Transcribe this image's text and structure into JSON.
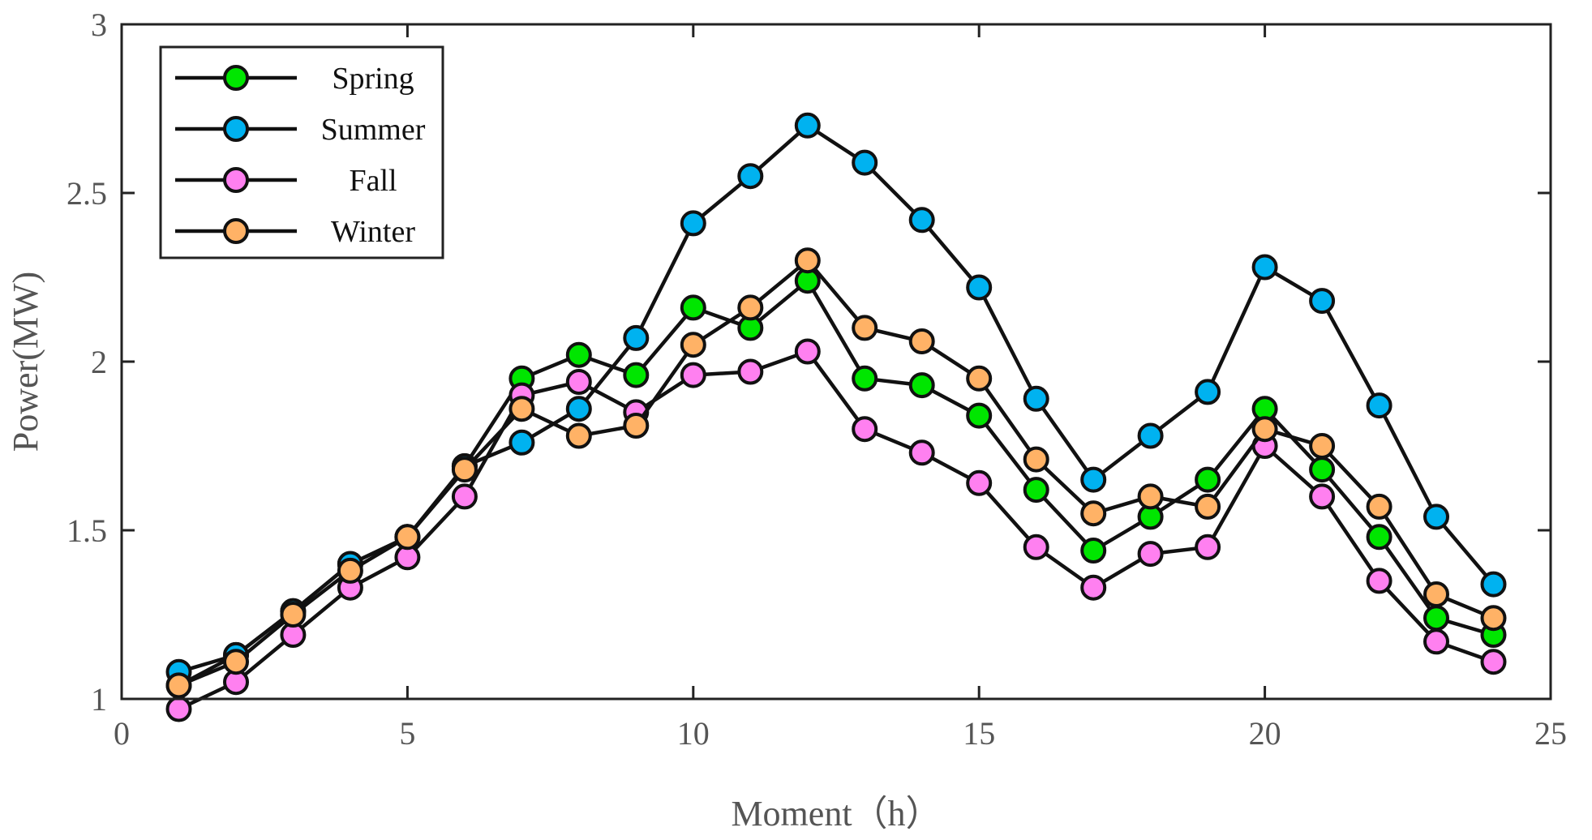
{
  "chart_data": {
    "type": "line",
    "title": "",
    "xlabel": "Moment（h）",
    "ylabel": "Power(MW)",
    "xlim": [
      0,
      25
    ],
    "ylim": [
      1,
      3
    ],
    "xticks": [
      0,
      5,
      10,
      15,
      20,
      25
    ],
    "yticks": [
      1,
      1.5,
      2,
      2.5,
      3
    ],
    "xtick_labels": [
      "0",
      "5",
      "10",
      "15",
      "20",
      "25"
    ],
    "ytick_labels": [
      "1",
      "1.5",
      "2",
      "2.5",
      "3"
    ],
    "grid": false,
    "legend_position": "top-left",
    "x": [
      1,
      2,
      3,
      4,
      5,
      6,
      7,
      8,
      9,
      10,
      11,
      12,
      13,
      14,
      15,
      16,
      17,
      18,
      19,
      20,
      21,
      22,
      23,
      24
    ],
    "series": [
      {
        "name": "Spring",
        "color": "#00e600",
        "values": [
          1.04,
          1.13,
          1.26,
          1.4,
          1.48,
          1.69,
          1.95,
          2.02,
          1.96,
          2.16,
          2.1,
          2.24,
          1.95,
          1.93,
          1.84,
          1.62,
          1.44,
          1.54,
          1.65,
          1.86,
          1.68,
          1.48,
          1.24,
          1.19
        ]
      },
      {
        "name": "Summer",
        "color": "#00b2f0",
        "values": [
          1.08,
          1.13,
          1.26,
          1.4,
          1.48,
          1.69,
          1.76,
          1.86,
          2.07,
          2.41,
          2.55,
          2.7,
          2.59,
          2.42,
          2.22,
          1.89,
          1.65,
          1.78,
          1.91,
          2.28,
          2.18,
          1.87,
          1.54,
          1.34
        ]
      },
      {
        "name": "Fall",
        "color": "#ff80f0",
        "values": [
          0.97,
          1.05,
          1.19,
          1.33,
          1.42,
          1.6,
          1.9,
          1.94,
          1.85,
          1.96,
          1.97,
          2.03,
          1.8,
          1.73,
          1.64,
          1.45,
          1.33,
          1.43,
          1.45,
          1.75,
          1.6,
          1.35,
          1.17,
          1.11
        ]
      },
      {
        "name": "Winter",
        "color": "#ffb266",
        "values": [
          1.04,
          1.11,
          1.25,
          1.38,
          1.48,
          1.68,
          1.86,
          1.78,
          1.81,
          2.05,
          2.16,
          2.3,
          2.1,
          2.06,
          1.95,
          1.71,
          1.55,
          1.6,
          1.57,
          1.8,
          1.75,
          1.57,
          1.31,
          1.24
        ]
      }
    ]
  }
}
